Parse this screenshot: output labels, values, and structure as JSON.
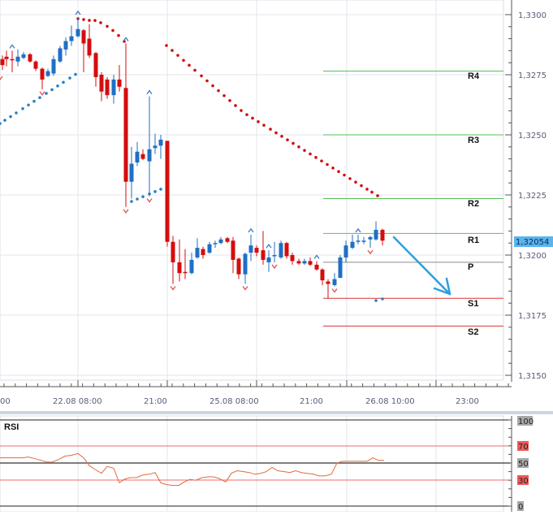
{
  "chart_data": [
    {
      "type": "candlestick",
      "title": "",
      "instrument_price_current": "1,32054",
      "ylabel": "",
      "ylim": [
        1.3145,
        1.331
      ],
      "y_ticks": [
        "1,3300",
        "1,3275",
        "1,3250",
        "1,3225",
        "1,3200",
        "1,3175",
        "1,3150"
      ],
      "x_tick_labels": [
        "00",
        "22.08 08:00",
        "21:00",
        "25.08 08:00",
        "21:00",
        "26.08 10:00",
        "23:00"
      ],
      "pivot_levels": [
        {
          "name": "R4",
          "value": 1.32765,
          "color": "#56c156"
        },
        {
          "name": "R3",
          "value": 1.325,
          "color": "#56c156"
        },
        {
          "name": "R2",
          "value": 1.32235,
          "color": "#56c156"
        },
        {
          "name": "R1",
          "value": 1.3209,
          "color": "#56c156"
        },
        {
          "name": "P",
          "value": 1.3197,
          "color": "#8a8a8a"
        },
        {
          "name": "S1",
          "value": 1.3182,
          "color": "#e03030"
        },
        {
          "name": "S2",
          "value": 1.31705,
          "color": "#e03030"
        }
      ],
      "candles": [
        {
          "x": 3,
          "o": 1.32815,
          "c": 1.3279,
          "h": 1.3283,
          "l": 1.3277
        },
        {
          "x": 8,
          "o": 1.32825,
          "c": 1.32815,
          "h": 1.3285,
          "l": 1.32785
        },
        {
          "x": 15,
          "o": 1.32815,
          "c": 1.3281,
          "h": 1.3285,
          "l": 1.3276
        },
        {
          "x": 22,
          "o": 1.32805,
          "c": 1.32825,
          "h": 1.32855,
          "l": 1.32785
        },
        {
          "x": 29,
          "o": 1.3282,
          "c": 1.32835,
          "h": 1.32845,
          "l": 1.32815
        },
        {
          "x": 37,
          "o": 1.32835,
          "c": 1.32805,
          "h": 1.3284,
          "l": 1.328
        },
        {
          "x": 44,
          "o": 1.32805,
          "c": 1.32775,
          "h": 1.3281,
          "l": 1.32765
        },
        {
          "x": 52,
          "o": 1.32775,
          "c": 1.3273,
          "h": 1.3278,
          "l": 1.3269
        },
        {
          "x": 59,
          "o": 1.32745,
          "c": 1.32765,
          "h": 1.32775,
          "l": 1.3274
        },
        {
          "x": 66,
          "o": 1.32755,
          "c": 1.32815,
          "h": 1.3283,
          "l": 1.32745
        },
        {
          "x": 74,
          "o": 1.32805,
          "c": 1.3286,
          "h": 1.3287,
          "l": 1.328
        },
        {
          "x": 81,
          "o": 1.32855,
          "c": 1.3289,
          "h": 1.32905,
          "l": 1.3283
        },
        {
          "x": 88,
          "o": 1.3289,
          "c": 1.3291,
          "h": 1.32955,
          "l": 1.3287
        },
        {
          "x": 96,
          "o": 1.3291,
          "c": 1.3294,
          "h": 1.3299,
          "l": 1.32905
        },
        {
          "x": 103,
          "o": 1.32935,
          "c": 1.3288,
          "h": 1.3294,
          "l": 1.3276
        },
        {
          "x": 110,
          "o": 1.329,
          "c": 1.3283,
          "h": 1.3296,
          "l": 1.3282
        },
        {
          "x": 118,
          "o": 1.3284,
          "c": 1.3274,
          "h": 1.32845,
          "l": 1.327
        },
        {
          "x": 125,
          "o": 1.3275,
          "c": 1.3268,
          "h": 1.3276,
          "l": 1.3264
        },
        {
          "x": 132,
          "o": 1.3273,
          "c": 1.32665,
          "h": 1.3274,
          "l": 1.3265
        },
        {
          "x": 140,
          "o": 1.32665,
          "c": 1.3273,
          "h": 1.3275,
          "l": 1.3263
        },
        {
          "x": 147,
          "o": 1.3273,
          "c": 1.327,
          "h": 1.3279,
          "l": 1.3268
        },
        {
          "x": 155,
          "o": 1.32695,
          "c": 1.32305,
          "h": 1.3288,
          "l": 1.322
        },
        {
          "x": 162,
          "o": 1.32305,
          "c": 1.3238,
          "h": 1.3245,
          "l": 1.32235
        },
        {
          "x": 169,
          "o": 1.32385,
          "c": 1.3243,
          "h": 1.3247,
          "l": 1.3237
        },
        {
          "x": 176,
          "o": 1.3242,
          "c": 1.324,
          "h": 1.3244,
          "l": 1.32395
        },
        {
          "x": 184,
          "o": 1.3239,
          "c": 1.3244,
          "h": 1.3266,
          "l": 1.32245
        },
        {
          "x": 191,
          "o": 1.32445,
          "c": 1.32455,
          "h": 1.32505,
          "l": 1.3242
        },
        {
          "x": 198,
          "o": 1.32455,
          "c": 1.3248,
          "h": 1.325,
          "l": 1.324
        },
        {
          "x": 206,
          "o": 1.32475,
          "c": 1.32055,
          "h": 1.32475,
          "l": 1.32035
        },
        {
          "x": 213,
          "o": 1.32055,
          "c": 1.3197,
          "h": 1.3208,
          "l": 1.3188
        },
        {
          "x": 221,
          "o": 1.3197,
          "c": 1.31925,
          "h": 1.32065,
          "l": 1.3189
        },
        {
          "x": 228,
          "o": 1.3193,
          "c": 1.31925,
          "h": 1.32025,
          "l": 1.319
        },
        {
          "x": 236,
          "o": 1.31925,
          "c": 1.3198,
          "h": 1.3201,
          "l": 1.3192
        },
        {
          "x": 243,
          "o": 1.3199,
          "c": 1.3203,
          "h": 1.3207,
          "l": 1.31985
        },
        {
          "x": 250,
          "o": 1.32025,
          "c": 1.32,
          "h": 1.32035,
          "l": 1.31985
        },
        {
          "x": 258,
          "o": 1.3201,
          "c": 1.32045,
          "h": 1.32055,
          "l": 1.32005
        },
        {
          "x": 265,
          "o": 1.32045,
          "c": 1.3205,
          "h": 1.3206,
          "l": 1.3203
        },
        {
          "x": 272,
          "o": 1.3205,
          "c": 1.32065,
          "h": 1.32075,
          "l": 1.32045
        },
        {
          "x": 280,
          "o": 1.3207,
          "c": 1.32055,
          "h": 1.32075,
          "l": 1.3205
        },
        {
          "x": 287,
          "o": 1.3206,
          "c": 1.3198,
          "h": 1.32075,
          "l": 1.31925
        },
        {
          "x": 294,
          "o": 1.31985,
          "c": 1.3192,
          "h": 1.3199,
          "l": 1.319
        },
        {
          "x": 302,
          "o": 1.3192,
          "c": 1.32005,
          "h": 1.3201,
          "l": 1.3188
        },
        {
          "x": 309,
          "o": 1.3201,
          "c": 1.3204,
          "h": 1.32085,
          "l": 1.31975
        },
        {
          "x": 316,
          "o": 1.3203,
          "c": 1.3201,
          "h": 1.3204,
          "l": 1.31995
        },
        {
          "x": 324,
          "o": 1.3202,
          "c": 1.3198,
          "h": 1.321,
          "l": 1.3196
        },
        {
          "x": 331,
          "o": 1.3197,
          "c": 1.3199,
          "h": 1.3202,
          "l": 1.3193
        },
        {
          "x": 338,
          "o": 1.31995,
          "c": 1.32,
          "h": 1.32055,
          "l": 1.3197
        },
        {
          "x": 346,
          "o": 1.3199,
          "c": 1.3205,
          "h": 1.3206,
          "l": 1.31985
        },
        {
          "x": 353,
          "o": 1.3205,
          "c": 1.31995,
          "h": 1.32055,
          "l": 1.31985
        },
        {
          "x": 360,
          "o": 1.32,
          "c": 1.31975,
          "h": 1.3201,
          "l": 1.3196
        },
        {
          "x": 368,
          "o": 1.31975,
          "c": 1.31965,
          "h": 1.31985,
          "l": 1.3196
        },
        {
          "x": 375,
          "o": 1.31965,
          "c": 1.31975,
          "h": 1.31985,
          "l": 1.3196
        },
        {
          "x": 382,
          "o": 1.31975,
          "c": 1.3196,
          "h": 1.3199,
          "l": 1.31955
        },
        {
          "x": 390,
          "o": 1.3196,
          "c": 1.3194,
          "h": 1.31975,
          "l": 1.31935
        },
        {
          "x": 397,
          "o": 1.3194,
          "c": 1.31895,
          "h": 1.31945,
          "l": 1.31875
        },
        {
          "x": 404,
          "o": 1.3189,
          "c": 1.3188,
          "h": 1.319,
          "l": 1.3182
        },
        {
          "x": 412,
          "o": 1.31875,
          "c": 1.319,
          "h": 1.31925,
          "l": 1.3187
        },
        {
          "x": 419,
          "o": 1.31905,
          "c": 1.3199,
          "h": 1.32,
          "l": 1.31905
        },
        {
          "x": 426,
          "o": 1.3199,
          "c": 1.3204,
          "h": 1.3206,
          "l": 1.3197
        },
        {
          "x": 434,
          "o": 1.3203,
          "c": 1.32055,
          "h": 1.32085,
          "l": 1.32025
        },
        {
          "x": 441,
          "o": 1.32055,
          "c": 1.3206,
          "h": 1.32085,
          "l": 1.32045
        },
        {
          "x": 448,
          "o": 1.32055,
          "c": 1.3206,
          "h": 1.32075,
          "l": 1.32045
        },
        {
          "x": 456,
          "o": 1.32065,
          "c": 1.32075,
          "h": 1.3208,
          "l": 1.3203
        },
        {
          "x": 463,
          "o": 1.32065,
          "c": 1.32105,
          "h": 1.3214,
          "l": 1.3206
        },
        {
          "x": 471,
          "o": 1.32105,
          "c": 1.3206,
          "h": 1.3211,
          "l": 1.3204
        }
      ],
      "parabolic_sar": {
        "red_dots_x": [
          96,
          103,
          110,
          117,
          124,
          132,
          139,
          146,
          153,
          205,
          212,
          219,
          226,
          233,
          240,
          248,
          255,
          262,
          269,
          276,
          283,
          290,
          297,
          304,
          311,
          318,
          325,
          333,
          340,
          347,
          354,
          361,
          368,
          375,
          382,
          389,
          396,
          403,
          410,
          417,
          424,
          431,
          438,
          445,
          452,
          458,
          465
        ],
        "blue_dots_x": [
          0,
          6,
          13,
          20,
          28,
          35,
          42,
          49,
          57,
          64,
          71,
          78,
          86,
          93,
          162,
          169,
          176,
          184,
          191,
          198,
          463,
          471
        ]
      },
      "fractal_markers_up_x": [
        15,
        96,
        155,
        184,
        309,
        331,
        390,
        441
      ],
      "fractal_markers_down_x": [
        0,
        52,
        155,
        184,
        213,
        302,
        338,
        412,
        456
      ],
      "annotation_arrow": {
        "from": [
          485,
          292
        ],
        "to": [
          554,
          362
        ],
        "color": "#2aa0e0"
      }
    },
    {
      "type": "line",
      "title": "RSI",
      "ylim": [
        0,
        100
      ],
      "y_ticks": [
        "100",
        "70",
        "50",
        "30",
        "0"
      ],
      "levels": [
        70,
        50,
        30
      ],
      "series": [
        {
          "name": "RSI",
          "x": [
            0,
            10,
            20,
            27,
            35,
            43,
            51,
            58,
            64,
            72,
            80,
            88,
            96,
            103,
            110,
            118,
            125,
            132,
            140,
            147,
            153,
            160,
            168,
            176,
            184,
            191,
            198,
            205,
            212,
            220,
            227,
            234,
            241,
            249,
            256,
            263,
            270,
            278,
            285,
            292,
            300,
            307,
            314,
            321,
            328,
            335,
            342,
            350,
            357,
            364,
            371,
            378,
            386,
            393,
            400,
            408,
            415,
            422,
            430,
            437,
            444,
            452,
            459,
            466,
            473
          ],
          "values": [
            56,
            56,
            56,
            56,
            57,
            55,
            53,
            51,
            51,
            54,
            58,
            59,
            61,
            56,
            47,
            42,
            38,
            46,
            44,
            27,
            31,
            33,
            33,
            36,
            37,
            39,
            27,
            25,
            24,
            24,
            28,
            31,
            30,
            33,
            34,
            34,
            32,
            28,
            38,
            41,
            40,
            39,
            37,
            38,
            40,
            45,
            41,
            40,
            39,
            41,
            39,
            38,
            37,
            35,
            35,
            37,
            50,
            52,
            52,
            52,
            52,
            52,
            56,
            53,
            53
          ]
        }
      ]
    }
  ],
  "price_axis": {
    "labels": [
      "1,3300",
      "1,3275",
      "1,3250",
      "1,3225",
      "1,3200",
      "1,3175",
      "1,3150"
    ],
    "current_price_badge": "1,32054"
  },
  "time_axis": {
    "labels": [
      "00",
      "22.08 08:00",
      "21:00",
      "25.08 08:00",
      "21:00",
      "26.08 10:00",
      "23:00"
    ]
  },
  "pivot_labels": [
    "R4",
    "R3",
    "R2",
    "R1",
    "P",
    "S1",
    "S2"
  ],
  "rsi_panel": {
    "title": "RSI",
    "axis_labels": [
      "100",
      "70",
      "50",
      "30",
      "0"
    ]
  },
  "colors": {
    "bull": "#1f6fc5",
    "bear": "#d40d0d",
    "sar_red": "#d40d0d",
    "sar_blue": "#2a7fc0",
    "grid": "#e2e6ec",
    "price_badge_bg": "#5ab4ee",
    "rsi_line": "#e06a3a",
    "rsi_level_line": "#ef6a6a",
    "rsi_mid_line": "#555555"
  }
}
